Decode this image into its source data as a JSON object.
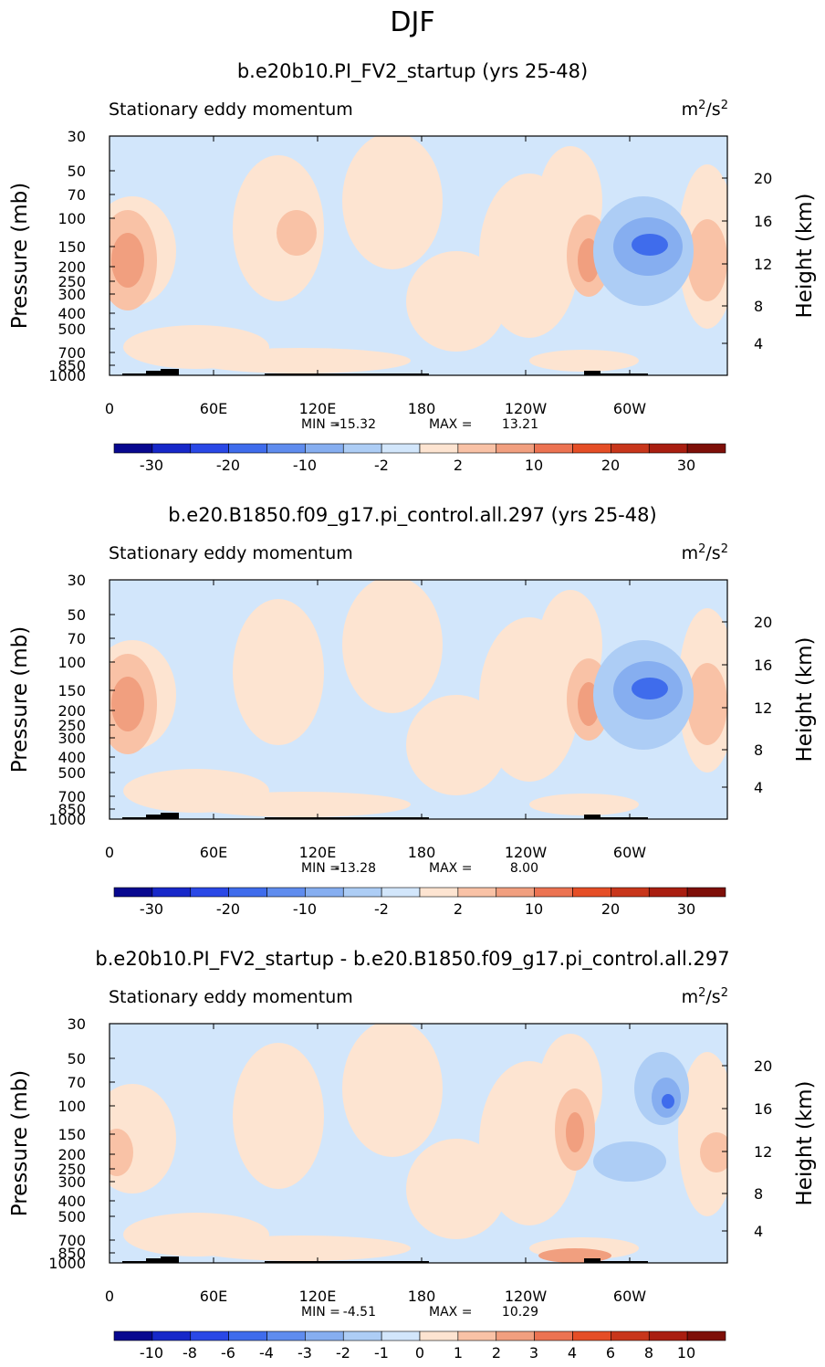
{
  "season": "DJF",
  "chart_data": [
    {
      "type": "heatmap",
      "title": "b.e20b10.PI_FV2_startup (yrs 25-48)",
      "left_label": "Stationary eddy momentum",
      "units_base": "m",
      "units_sup1": "2",
      "units_mid": "/s",
      "units_sup2": "2",
      "ylabel": "Pressure (mb)",
      "y2label": "Height (km)",
      "pressure_ticks": [
        "30",
        "50",
        "70",
        "100",
        "150",
        "200",
        "250",
        "300",
        "400",
        "500",
        "700",
        "850",
        "1000"
      ],
      "height_ticks": [
        "20",
        "16",
        "12",
        "8",
        "4"
      ],
      "lon_ticks": [
        "0",
        "60E",
        "120E",
        "180",
        "120W",
        "60W"
      ],
      "min_label": "MIN =",
      "min_value": "-15.32",
      "max_label": "MAX =",
      "max_value": "13.21",
      "colorbar_labels": [
        "-30",
        "-20",
        "-10",
        "-2",
        "2",
        "10",
        "20",
        "30"
      ]
    },
    {
      "type": "heatmap",
      "title": "b.e20.B1850.f09_g17.pi_control.all.297 (yrs 25-48)",
      "left_label": "Stationary eddy momentum",
      "units_base": "m",
      "units_sup1": "2",
      "units_mid": "/s",
      "units_sup2": "2",
      "ylabel": "Pressure (mb)",
      "y2label": "Height (km)",
      "pressure_ticks": [
        "30",
        "50",
        "70",
        "100",
        "150",
        "200",
        "250",
        "300",
        "400",
        "500",
        "700",
        "850",
        "1000"
      ],
      "height_ticks": [
        "20",
        "16",
        "12",
        "8",
        "4"
      ],
      "lon_ticks": [
        "0",
        "60E",
        "120E",
        "180",
        "120W",
        "60W"
      ],
      "min_label": "MIN =",
      "min_value": "-13.28",
      "max_label": "MAX =",
      "max_value": "8.00",
      "colorbar_labels": [
        "-30",
        "-20",
        "-10",
        "-2",
        "2",
        "10",
        "20",
        "30"
      ]
    },
    {
      "type": "heatmap",
      "title": "b.e20b10.PI_FV2_startup - b.e20.B1850.f09_g17.pi_control.all.297",
      "left_label": "Stationary eddy momentum",
      "units_base": "m",
      "units_sup1": "2",
      "units_mid": "/s",
      "units_sup2": "2",
      "ylabel": "Pressure (mb)",
      "y2label": "Height (km)",
      "pressure_ticks": [
        "30",
        "50",
        "70",
        "100",
        "150",
        "200",
        "250",
        "300",
        "400",
        "500",
        "700",
        "850",
        "1000"
      ],
      "height_ticks": [
        "20",
        "16",
        "12",
        "8",
        "4"
      ],
      "lon_ticks": [
        "0",
        "60E",
        "120E",
        "180",
        "120W",
        "60W"
      ],
      "min_label": "MIN =",
      "min_value": "-4.51",
      "max_label": "MAX =",
      "max_value": "10.29",
      "colorbar_labels": [
        "-10",
        "-8",
        "-6",
        "-4",
        "-3",
        "-2",
        "-1",
        "0",
        "1",
        "2",
        "3",
        "4",
        "6",
        "8",
        "10"
      ]
    }
  ],
  "colors": {
    "background_field": "#d2e6fb",
    "neg1": "#d2e6fb",
    "neg2": "#adcdf5",
    "neg3": "#86aef0",
    "neg4": "#3f6cec",
    "pos1": "#fde4d1",
    "pos2": "#f9c2a6",
    "pos3": "#f19f7f",
    "pos4": "#ec7352",
    "topography": "#000000",
    "palette": [
      "#08088f",
      "#1728c9",
      "#2a48e6",
      "#3f6cec",
      "#5f8cee",
      "#86aef0",
      "#adcdf5",
      "#d2e6fb",
      "#fde4d1",
      "#f9c2a6",
      "#f19f7f",
      "#ec7352",
      "#e54e26",
      "#c8361b",
      "#a91e10",
      "#7e0f08"
    ]
  }
}
